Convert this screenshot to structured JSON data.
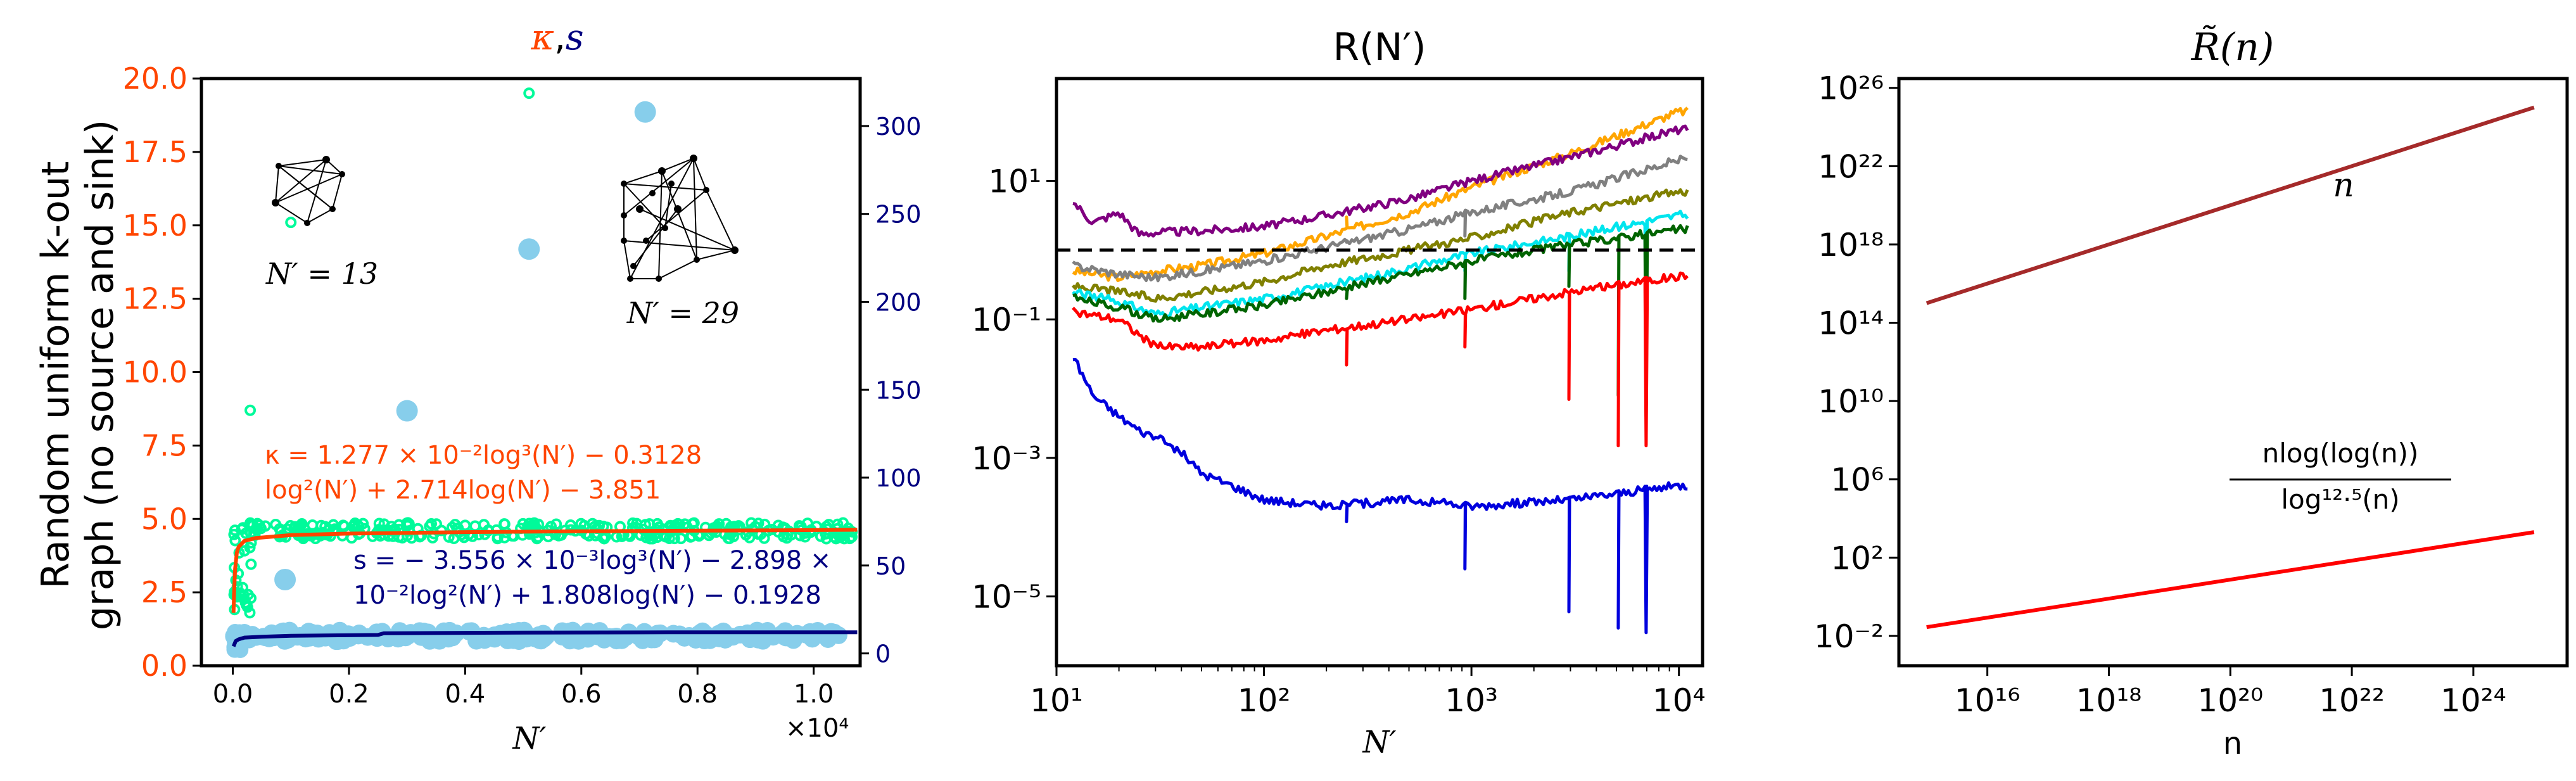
{
  "chart_data": [
    {
      "type": "scatter",
      "title_parts": [
        "κ",
        ",",
        "s"
      ],
      "title_colors": [
        "#ff4500",
        "#000000",
        "#000080"
      ],
      "ylabel_lines": [
        "Random uniform k-out",
        "graph (no source and sink)"
      ],
      "xlabel": "N′",
      "x_multiplier": "×10⁴",
      "xlim": [
        -0.054,
        1.08
      ],
      "ylim_left": [
        0,
        20
      ],
      "ylim_right": [
        -7,
        327
      ],
      "x_ticks": [
        0.0,
        0.2,
        0.4,
        0.6,
        0.8,
        1.0
      ],
      "x_tick_labels": [
        "0.0",
        "0.2",
        "0.4",
        "0.6",
        "0.8",
        "1.0"
      ],
      "y_left_ticks": [
        0.0,
        2.5,
        5.0,
        7.5,
        10.0,
        12.5,
        15.0,
        17.5,
        20.0
      ],
      "y_left_tick_labels": [
        "0.0",
        "2.5",
        "5.0",
        "7.5",
        "10.0",
        "12.5",
        "15.0",
        "17.5",
        "20.0"
      ],
      "y_right_ticks": [
        0,
        50,
        100,
        150,
        200,
        250,
        300
      ],
      "y_right_tick_labels": [
        "0",
        "50",
        "100",
        "150",
        "200",
        "250",
        "300"
      ],
      "colors": {
        "kappa": "#ff4500",
        "kappa_pts": "#00fa9a",
        "s": "#000080",
        "s_pts": "#87ceeb",
        "left_axis": "#ff4500",
        "right_axis": "#000080"
      },
      "series": [
        {
          "name": "κ outliers",
          "axis": "left",
          "points": [
            [
              0.03,
              8.7
            ],
            [
              0.1,
              15.1
            ],
            [
              0.51,
              19.5
            ]
          ]
        },
        {
          "name": "s outliers",
          "axis": "right",
          "points": [
            [
              0.09,
              42
            ],
            [
              0.3,
              138
            ],
            [
              0.51,
              230
            ],
            [
              0.71,
              308
            ]
          ]
        },
        {
          "name": "κ data (band)",
          "axis": "left",
          "approx_value": 4.6,
          "x_range": [
            0.0,
            1.08
          ]
        },
        {
          "name": "s data (band)",
          "axis": "right",
          "approx_value": 10,
          "x_range": [
            0.0,
            1.08
          ]
        }
      ],
      "fits": [
        {
          "name": "κ fit",
          "axis": "left",
          "x": [
            0.0013,
            0.002,
            0.004,
            0.007,
            0.01,
            0.02,
            0.04,
            0.07,
            0.1,
            0.2,
            0.4,
            0.6,
            0.8,
            1.0,
            1.075
          ],
          "y": [
            1.8,
            2.4,
            3.3,
            3.85,
            4.05,
            4.25,
            4.35,
            4.4,
            4.45,
            4.5,
            4.55,
            4.58,
            4.6,
            4.62,
            4.63
          ]
        },
        {
          "name": "s fit",
          "axis": "right",
          "x": [
            0.0013,
            0.005,
            0.01,
            0.02,
            0.05,
            0.1,
            0.25,
            0.26,
            0.5,
            0.75,
            1.0,
            1.075
          ],
          "y": [
            4,
            7,
            8,
            9,
            9.5,
            10,
            10.5,
            11.5,
            11.8,
            12,
            12,
            12
          ]
        }
      ],
      "annotations": {
        "kappa_eq_1": "κ = 1.277 × 10⁻²log³(N′) − 0.3128",
        "kappa_eq_2": "log²(N′) + 2.714log(N′) − 3.851",
        "s_eq_1": "s = − 3.556 × 10⁻³log³(N′) − 2.898 ×",
        "s_eq_2": "10⁻²log²(N′) + 1.808log(N′) − 0.1928",
        "graph_small_label": "N′ = 13",
        "graph_large_label": "N′ = 29"
      }
    },
    {
      "type": "line",
      "title": "R(N′)",
      "xlabel": "N′",
      "xscale": "log",
      "yscale": "log",
      "xlim": [
        10,
        13000
      ],
      "ylim": [
        1e-06,
        300
      ],
      "x_ticks": [
        10,
        100,
        1000,
        10000
      ],
      "x_tick_labels": [
        "10¹",
        "10²",
        "10³",
        "10⁴"
      ],
      "y_ticks": [
        1e-05,
        0.001,
        0.1,
        10
      ],
      "y_tick_labels": [
        "10⁻⁵",
        "10⁻³",
        "10⁻¹",
        "10¹"
      ],
      "reference_line": {
        "y": 1.0,
        "style": "dashed",
        "color": "#000000"
      },
      "series": [
        {
          "name": "orange",
          "color": "#ffa500",
          "x": [
            12,
            20,
            30,
            50,
            100,
            200,
            500,
            1000,
            3000,
            10000
          ],
          "y": [
            0.5,
            0.4,
            0.5,
            0.6,
            0.9,
            1.6,
            3.5,
            8,
            25,
            100
          ]
        },
        {
          "name": "purple",
          "color": "#800080",
          "x": [
            12,
            15,
            20,
            25,
            30,
            50,
            100,
            200,
            500,
            1000,
            3000,
            10000
          ],
          "y": [
            5,
            2.5,
            3.5,
            1.7,
            1.8,
            1.9,
            2.2,
            3.2,
            5.5,
            10,
            22,
            55
          ]
        },
        {
          "name": "grey",
          "color": "#808080",
          "x": [
            12,
            20,
            30,
            50,
            100,
            200,
            500,
            1000,
            3000,
            10000
          ],
          "y": [
            0.6,
            0.45,
            0.4,
            0.5,
            0.7,
            1.1,
            2.0,
            3.5,
            7,
            20
          ]
        },
        {
          "name": "olive",
          "color": "#808000",
          "x": [
            12,
            20,
            30,
            50,
            100,
            200,
            500,
            1000,
            3000,
            10000
          ],
          "y": [
            0.3,
            0.25,
            0.2,
            0.25,
            0.35,
            0.6,
            1.0,
            1.5,
            3.5,
            7
          ]
        },
        {
          "name": "cyan",
          "color": "#00e5ee",
          "x": [
            12,
            20,
            30,
            50,
            100,
            200,
            500,
            1000,
            3000,
            10000
          ],
          "y": [
            0.25,
            0.18,
            0.12,
            0.15,
            0.2,
            0.3,
            0.55,
            0.9,
            1.6,
            3.2
          ]
        },
        {
          "name": "green",
          "color": "#006400",
          "x": [
            12,
            20,
            30,
            50,
            100,
            200,
            500,
            1000,
            3000,
            10000
          ],
          "y": [
            0.2,
            0.15,
            0.1,
            0.12,
            0.16,
            0.25,
            0.45,
            0.7,
            1.2,
            2
          ]
        },
        {
          "name": "red",
          "color": "#ff0000",
          "x": [
            12,
            20,
            30,
            50,
            100,
            200,
            500,
            1000,
            3000,
            10000
          ],
          "y": [
            0.13,
            0.1,
            0.04,
            0.04,
            0.05,
            0.07,
            0.1,
            0.14,
            0.25,
            0.42
          ]
        },
        {
          "name": "blue",
          "color": "#0000dd",
          "x": [
            12,
            15,
            20,
            25,
            30,
            40,
            50,
            70,
            100,
            200,
            500,
            1000,
            3000,
            10000
          ],
          "y": [
            0.03,
            0.008,
            0.004,
            0.0025,
            0.002,
            0.0012,
            0.0006,
            0.0004,
            0.00025,
            0.0002,
            0.00025,
            0.0002,
            0.00025,
            0.0004
          ]
        }
      ],
      "dips": [
        {
          "x": 250,
          "series": [
            "orange",
            "grey",
            "green",
            "red",
            "blue"
          ],
          "to": [
            3,
            1.3,
            0.2,
            0.022,
            0.00012
          ]
        },
        {
          "x": 930,
          "series": [
            "grey",
            "cyan",
            "green",
            "red",
            "blue"
          ],
          "to": [
            1.6,
            0.5,
            0.2,
            0.04,
            2.5e-05
          ]
        },
        {
          "x": 2950,
          "series": [
            "cyan",
            "green",
            "red",
            "blue"
          ],
          "to": [
            0.5,
            0.3,
            0.007,
            6e-06
          ]
        },
        {
          "x": 5100,
          "series": [
            "green",
            "red",
            "blue"
          ],
          "to": [
            0.008,
            0.0015,
            3.5e-06
          ]
        },
        {
          "x": 6950,
          "series": [
            "cyan",
            "green",
            "red",
            "blue"
          ],
          "to": [
            0.01,
            0.004,
            0.0015,
            3e-06
          ]
        }
      ]
    },
    {
      "type": "line",
      "title": "R̃(n)",
      "xlabel": "n",
      "xscale": "log",
      "yscale": "log",
      "xlim": [
        350000000000000.0,
        3.5e+25
      ],
      "ylim": [
        0.0003,
        3e+26
      ],
      "x_ticks": [
        1e+16,
        1e+18,
        1e+20,
        1e+22,
        1e+24
      ],
      "x_tick_labels": [
        "10¹⁶",
        "10¹⁸",
        "10²⁰",
        "10²²",
        "10²⁴"
      ],
      "y_ticks": [
        0.01,
        100,
        1000000.0,
        10000000000.0,
        100000000000000.0,
        1e+18,
        1e+22,
        1e+26
      ],
      "y_tick_labels": [
        "10⁻²",
        "10²",
        "10⁶",
        "10¹⁰",
        "10¹⁴",
        "10¹⁸",
        "10²²",
        "10²⁶"
      ],
      "series": [
        {
          "name": "n",
          "color": "#a52a2a",
          "x": [
            1000000000000000.0,
            1e+25
          ],
          "y": [
            1000000000000000.0,
            1e+25
          ]
        },
        {
          "name": "n log(log(n)) / log^12.5(n)",
          "color": "#ff0000",
          "x": [
            1000000000000000.0,
            1e+25
          ],
          "y": [
            0.028,
            2000
          ]
        }
      ],
      "annotations": {
        "n_label": "n",
        "frac_num": "nlog(log(n))",
        "frac_den": "log¹²·⁵(n)"
      }
    }
  ]
}
